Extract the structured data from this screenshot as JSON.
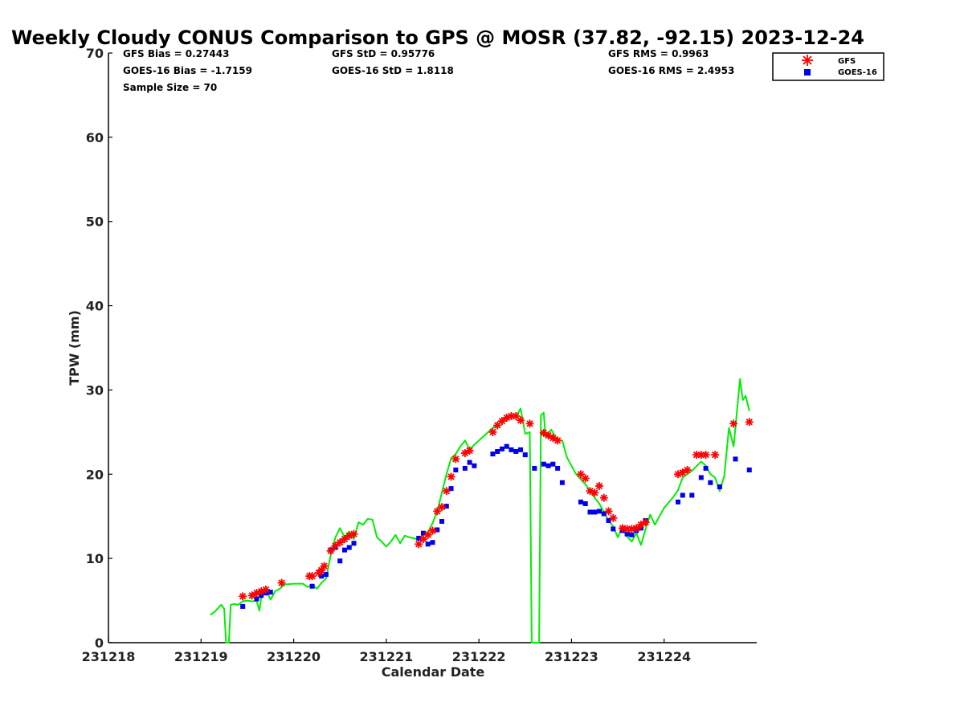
{
  "chart_data": {
    "type": "line",
    "title": "Weekly Cloudy CONUS Comparison to GPS @ MOSR (37.82, -92.15) 2023-12-24",
    "xlabel": "Calendar Date",
    "ylabel": "TPW (mm)",
    "xlim": [
      231218,
      231225
    ],
    "ylim": [
      0,
      70
    ],
    "x_ticks": [
      "231218",
      "231219",
      "231220",
      "231221",
      "231222",
      "231223",
      "231224"
    ],
    "y_ticks": [
      "0",
      "10",
      "20",
      "30",
      "40",
      "50",
      "60",
      "70"
    ],
    "grid": false,
    "legend_position": "top-right",
    "stats": {
      "gfs_bias": "GFS Bias = 0.27443",
      "goes_bias": "GOES-16 Bias = -1.7159",
      "sample_size": "Sample Size = 70",
      "gfs_std": "GFS StD = 0.95776",
      "goes_std": "GOES-16 StD = 1.8118",
      "gfs_rms": "GFS RMS = 0.9963",
      "goes_rms": "GOES-16 RMS = 2.4953"
    },
    "series": [
      {
        "name": "GFS",
        "color": "#ff0000",
        "marker": "asterisk",
        "points": [
          [
            231219.45,
            5.5
          ],
          [
            231219.55,
            5.6
          ],
          [
            231219.6,
            5.9
          ],
          [
            231219.65,
            6.1
          ],
          [
            231219.7,
            6.3
          ],
          [
            231219.87,
            7.1
          ],
          [
            231220.17,
            7.9
          ],
          [
            231220.2,
            7.9
          ],
          [
            231220.27,
            8.3
          ],
          [
            231220.3,
            8.6
          ],
          [
            231220.33,
            9.1
          ],
          [
            231220.4,
            10.9
          ],
          [
            231220.45,
            11.5
          ],
          [
            231220.5,
            11.9
          ],
          [
            231220.55,
            12.3
          ],
          [
            231220.6,
            12.7
          ],
          [
            231220.65,
            12.9
          ],
          [
            231221.35,
            11.7
          ],
          [
            231221.4,
            12.3
          ],
          [
            231221.45,
            12.8
          ],
          [
            231221.5,
            13.3
          ],
          [
            231221.55,
            15.6
          ],
          [
            231221.6,
            16.1
          ],
          [
            231221.65,
            18.0
          ],
          [
            231221.7,
            19.7
          ],
          [
            231221.75,
            21.8
          ],
          [
            231221.85,
            22.5
          ],
          [
            231221.9,
            22.8
          ],
          [
            231222.15,
            25.0
          ],
          [
            231222.2,
            25.8
          ],
          [
            231222.25,
            26.3
          ],
          [
            231222.3,
            26.7
          ],
          [
            231222.35,
            26.9
          ],
          [
            231222.4,
            26.9
          ],
          [
            231222.45,
            26.4
          ],
          [
            231222.55,
            26.0
          ],
          [
            231222.7,
            24.9
          ],
          [
            231222.75,
            24.6
          ],
          [
            231222.8,
            24.3
          ],
          [
            231222.85,
            24.0
          ],
          [
            231223.1,
            20.0
          ],
          [
            231223.15,
            19.5
          ],
          [
            231223.2,
            18.0
          ],
          [
            231223.25,
            17.8
          ],
          [
            231223.3,
            18.6
          ],
          [
            231223.35,
            17.2
          ],
          [
            231223.4,
            15.6
          ],
          [
            231223.45,
            14.8
          ],
          [
            231223.55,
            13.6
          ],
          [
            231223.6,
            13.5
          ],
          [
            231223.65,
            13.5
          ],
          [
            231223.7,
            13.6
          ],
          [
            231223.75,
            14.0
          ],
          [
            231223.8,
            14.3
          ],
          [
            231224.15,
            20.0
          ],
          [
            231224.2,
            20.2
          ],
          [
            231224.25,
            20.5
          ],
          [
            231224.35,
            22.3
          ],
          [
            231224.4,
            22.3
          ],
          [
            231224.45,
            22.3
          ],
          [
            231224.55,
            22.3
          ],
          [
            231224.75,
            26.0
          ],
          [
            231224.92,
            26.2
          ]
        ]
      },
      {
        "name": "GOES-16",
        "color": "#0000ee",
        "marker": "square",
        "points": [
          [
            231219.45,
            4.3
          ],
          [
            231219.6,
            5.2
          ],
          [
            231219.65,
            5.6
          ],
          [
            231219.7,
            5.9
          ],
          [
            231219.75,
            6.0
          ],
          [
            231220.2,
            6.7
          ],
          [
            231220.3,
            7.9
          ],
          [
            231220.35,
            8.1
          ],
          [
            231220.4,
            11.0
          ],
          [
            231220.45,
            11.3
          ],
          [
            231220.5,
            9.7
          ],
          [
            231220.55,
            11.0
          ],
          [
            231220.6,
            11.3
          ],
          [
            231220.65,
            11.8
          ],
          [
            231221.35,
            12.4
          ],
          [
            231221.4,
            13.0
          ],
          [
            231221.45,
            11.7
          ],
          [
            231221.5,
            11.9
          ],
          [
            231221.55,
            13.4
          ],
          [
            231221.6,
            14.4
          ],
          [
            231221.65,
            16.2
          ],
          [
            231221.7,
            18.3
          ],
          [
            231221.75,
            20.5
          ],
          [
            231221.85,
            20.7
          ],
          [
            231221.9,
            21.4
          ],
          [
            231221.95,
            21.0
          ],
          [
            231222.15,
            22.4
          ],
          [
            231222.2,
            22.7
          ],
          [
            231222.25,
            23.0
          ],
          [
            231222.3,
            23.3
          ],
          [
            231222.35,
            22.9
          ],
          [
            231222.4,
            22.7
          ],
          [
            231222.45,
            22.9
          ],
          [
            231222.5,
            22.3
          ],
          [
            231222.6,
            20.7
          ],
          [
            231222.7,
            21.2
          ],
          [
            231222.75,
            21.0
          ],
          [
            231222.8,
            21.2
          ],
          [
            231222.85,
            20.7
          ],
          [
            231222.9,
            19.0
          ],
          [
            231223.1,
            16.7
          ],
          [
            231223.15,
            16.5
          ],
          [
            231223.2,
            15.5
          ],
          [
            231223.25,
            15.5
          ],
          [
            231223.3,
            15.6
          ],
          [
            231223.35,
            15.3
          ],
          [
            231223.4,
            14.5
          ],
          [
            231223.45,
            13.5
          ],
          [
            231223.55,
            13.3
          ],
          [
            231223.6,
            12.9
          ],
          [
            231223.65,
            12.8
          ],
          [
            231223.7,
            13.3
          ],
          [
            231223.75,
            13.6
          ],
          [
            231223.8,
            14.5
          ],
          [
            231224.15,
            16.7
          ],
          [
            231224.2,
            17.5
          ],
          [
            231224.3,
            17.5
          ],
          [
            231224.4,
            19.6
          ],
          [
            231224.45,
            20.7
          ],
          [
            231224.5,
            19.0
          ],
          [
            231224.6,
            18.5
          ],
          [
            231224.77,
            21.8
          ],
          [
            231224.92,
            20.5
          ]
        ]
      },
      {
        "name": "GPS",
        "color": "#00ee00",
        "marker": "line",
        "points": [
          [
            231219.1,
            3.3
          ],
          [
            231219.15,
            3.7
          ],
          [
            231219.2,
            4.3
          ],
          [
            231219.22,
            4.5
          ],
          [
            231219.25,
            4.0
          ],
          [
            231219.27,
            0.0
          ],
          [
            231219.3,
            0.0
          ],
          [
            231219.32,
            4.5
          ],
          [
            231219.36,
            4.6
          ],
          [
            231219.4,
            4.5
          ],
          [
            231219.45,
            4.9
          ],
          [
            231219.5,
            5.0
          ],
          [
            231219.55,
            4.9
          ],
          [
            231219.6,
            5.0
          ],
          [
            231219.63,
            3.8
          ],
          [
            231219.66,
            6.2
          ],
          [
            231219.7,
            6.3
          ],
          [
            231219.75,
            5.1
          ],
          [
            231219.8,
            6.1
          ],
          [
            231219.85,
            6.4
          ],
          [
            231219.9,
            6.9
          ],
          [
            231220.0,
            7.0
          ],
          [
            231220.1,
            7.0
          ],
          [
            231220.15,
            6.6
          ],
          [
            231220.2,
            6.9
          ],
          [
            231220.25,
            6.4
          ],
          [
            231220.3,
            7.1
          ],
          [
            231220.35,
            7.6
          ],
          [
            231220.4,
            10.4
          ],
          [
            231220.45,
            12.5
          ],
          [
            231220.5,
            13.6
          ],
          [
            231220.55,
            12.5
          ],
          [
            231220.6,
            13.2
          ],
          [
            231220.65,
            12.3
          ],
          [
            231220.7,
            14.3
          ],
          [
            231220.75,
            14.0
          ],
          [
            231220.8,
            14.7
          ],
          [
            231220.85,
            14.6
          ],
          [
            231220.9,
            12.5
          ],
          [
            231220.95,
            12.0
          ],
          [
            231221.0,
            11.4
          ],
          [
            231221.05,
            12.0
          ],
          [
            231221.1,
            12.8
          ],
          [
            231221.15,
            11.8
          ],
          [
            231221.2,
            12.7
          ],
          [
            231221.25,
            12.5
          ],
          [
            231221.3,
            12.4
          ],
          [
            231221.35,
            12.2
          ],
          [
            231221.4,
            12.9
          ],
          [
            231221.45,
            13.1
          ],
          [
            231221.5,
            14.2
          ],
          [
            231221.55,
            15.6
          ],
          [
            231221.6,
            17.8
          ],
          [
            231221.65,
            20.0
          ],
          [
            231221.7,
            21.9
          ],
          [
            231221.75,
            22.4
          ],
          [
            231221.8,
            23.3
          ],
          [
            231221.85,
            24.0
          ],
          [
            231221.9,
            22.9
          ],
          [
            231221.95,
            23.5
          ],
          [
            231222.0,
            24.0
          ],
          [
            231222.05,
            24.5
          ],
          [
            231222.1,
            25.0
          ],
          [
            231222.15,
            25.5
          ],
          [
            231222.2,
            25.9
          ],
          [
            231222.25,
            26.3
          ],
          [
            231222.3,
            26.8
          ],
          [
            231222.35,
            27.0
          ],
          [
            231222.4,
            26.8
          ],
          [
            231222.45,
            27.8
          ],
          [
            231222.5,
            24.8
          ],
          [
            231222.55,
            25.0
          ],
          [
            231222.57,
            0.0
          ],
          [
            231222.65,
            0.0
          ],
          [
            231222.67,
            27.0
          ],
          [
            231222.7,
            27.3
          ],
          [
            231222.72,
            24.5
          ],
          [
            231222.78,
            25.3
          ],
          [
            231222.85,
            24.0
          ],
          [
            231222.9,
            24.0
          ],
          [
            231222.95,
            22.0
          ],
          [
            231223.0,
            21.0
          ],
          [
            231223.05,
            20.0
          ],
          [
            231223.1,
            19.4
          ],
          [
            231223.15,
            18.8
          ],
          [
            231223.2,
            18.0
          ],
          [
            231223.25,
            17.2
          ],
          [
            231223.3,
            16.5
          ],
          [
            231223.35,
            15.5
          ],
          [
            231223.4,
            14.5
          ],
          [
            231223.45,
            13.8
          ],
          [
            231223.5,
            12.5
          ],
          [
            231223.55,
            13.8
          ],
          [
            231223.6,
            12.6
          ],
          [
            231223.65,
            12.0
          ],
          [
            231223.7,
            13.0
          ],
          [
            231223.75,
            11.6
          ],
          [
            231223.8,
            13.5
          ],
          [
            231223.85,
            15.2
          ],
          [
            231223.9,
            14.0
          ],
          [
            231224.0,
            16.0
          ],
          [
            231224.1,
            17.3
          ],
          [
            231224.15,
            18.1
          ],
          [
            231224.2,
            19.6
          ],
          [
            231224.3,
            20.4
          ],
          [
            231224.4,
            21.5
          ],
          [
            231224.45,
            21.0
          ],
          [
            231224.5,
            20.0
          ],
          [
            231224.55,
            19.6
          ],
          [
            231224.6,
            18.0
          ],
          [
            231224.65,
            19.8
          ],
          [
            231224.7,
            25.5
          ],
          [
            231224.75,
            23.3
          ],
          [
            231224.8,
            29.0
          ],
          [
            231224.82,
            31.3
          ],
          [
            231224.85,
            28.8
          ],
          [
            231224.88,
            29.3
          ],
          [
            231224.92,
            27.5
          ]
        ]
      }
    ]
  }
}
